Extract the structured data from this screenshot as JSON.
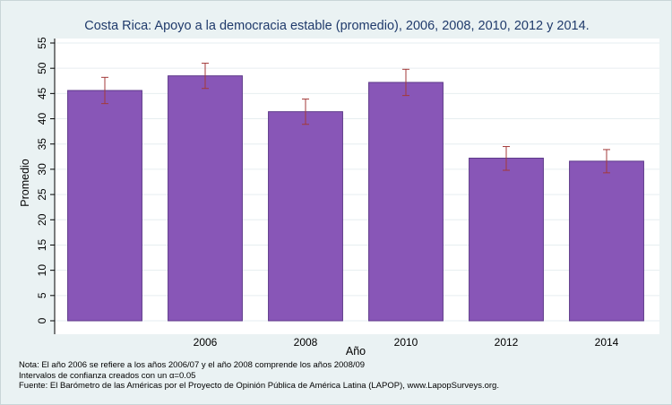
{
  "chart_data": {
    "type": "bar",
    "title": "Costa Rica: Apoyo a la democracia estable (promedio), 2006, 2008, 2010, 2012 y 2014.",
    "xlabel": "Año",
    "ylabel": "Promedio",
    "categories": [
      "",
      "2006",
      "2008",
      "2010",
      "2012",
      "2014"
    ],
    "values": [
      45.6,
      48.5,
      41.4,
      47.2,
      32.2,
      31.6
    ],
    "ci_lower": [
      43.0,
      46.0,
      38.9,
      44.6,
      29.8,
      29.3
    ],
    "ci_upper": [
      48.2,
      51.0,
      43.9,
      49.8,
      34.5,
      33.9
    ],
    "ylim": [
      0,
      55
    ],
    "yticks": [
      "0",
      "5",
      "10",
      "15",
      "20",
      "25",
      "30",
      "35",
      "40",
      "45",
      "50",
      "55"
    ],
    "grid": true,
    "bar_color": "#8856b7",
    "bar_edge_color": "#5e3a8a",
    "error_bar_color": "#a33a3a"
  },
  "notes": {
    "line1": "Nota: El año 2006 se refiere a los años 2006/07 y el año 2008 comprende los años 2008/09",
    "line2": "Intervalos de confianza creados con un α=0.05",
    "line3": "Fuente: El Barómetro de las Américas por el Proyecto de Opinión Pública de América Latina (LAPOP), www.LapopSurveys.org."
  }
}
